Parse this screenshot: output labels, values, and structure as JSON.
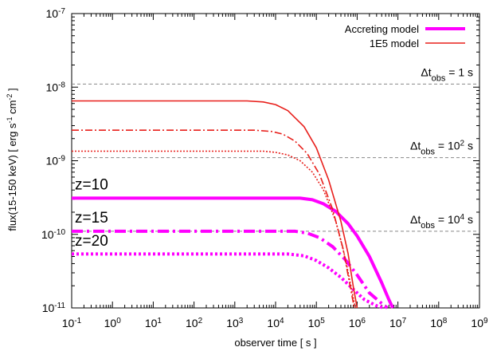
{
  "chart_data": {
    "type": "line",
    "xlabel": "observer time [ s ]",
    "ylabel": "flux(15-150 keV) [ erg s-1 cm-2 ]",
    "ylabel_parts": {
      "prefix": "flux(15-150 keV) [ erg s",
      "exp1": "-1",
      "middle": " cm",
      "exp2": "-2",
      "suffix": " ]"
    },
    "x_scale": "log",
    "y_scale": "log",
    "xlim": [
      0.1,
      1000000000
    ],
    "ylim": [
      1e-11,
      1e-07
    ],
    "grid": false,
    "legend_position": "top-right",
    "x_ticks": [
      {
        "value": 0.1,
        "base": "10",
        "exp": "-1"
      },
      {
        "value": 1,
        "base": "10",
        "exp": "0"
      },
      {
        "value": 10,
        "base": "10",
        "exp": "1"
      },
      {
        "value": 100,
        "base": "10",
        "exp": "2"
      },
      {
        "value": 1000,
        "base": "10",
        "exp": "3"
      },
      {
        "value": 10000,
        "base": "10",
        "exp": "4"
      },
      {
        "value": 100000,
        "base": "10",
        "exp": "5"
      },
      {
        "value": 1000000,
        "base": "10",
        "exp": "6"
      },
      {
        "value": 10000000,
        "base": "10",
        "exp": "7"
      },
      {
        "value": 100000000,
        "base": "10",
        "exp": "8"
      },
      {
        "value": 1000000000,
        "base": "10",
        "exp": "9"
      }
    ],
    "y_ticks": [
      {
        "value": 1e-11,
        "base": "10",
        "exp": "-11"
      },
      {
        "value": 1e-10,
        "base": "10",
        "exp": "-10"
      },
      {
        "value": 1e-09,
        "base": "10",
        "exp": "-9"
      },
      {
        "value": 1e-08,
        "base": "10",
        "exp": "-8"
      },
      {
        "value": 1e-07,
        "base": "10",
        "exp": "-7"
      }
    ],
    "legend": [
      {
        "name": "Accreting model",
        "color": "#ff00ff",
        "width": "thick"
      },
      {
        "name": "1E5 model",
        "color": "#e8201c",
        "width": "thin"
      }
    ],
    "series": [
      {
        "model": "Accreting model",
        "redshift": "z=10",
        "color": "#ff00ff",
        "dash": "solid",
        "width": "thick",
        "x": [
          0.1,
          40000,
          80000,
          150000,
          300000,
          600000,
          1000000,
          2000000,
          4000000,
          6000000,
          7500000
        ],
        "y": [
          3.1e-10,
          3.1e-10,
          2.95e-10,
          2.6e-10,
          2.05e-10,
          1.4e-10,
          9.5e-11,
          5e-11,
          2.2e-11,
          1.3e-11,
          1e-11
        ]
      },
      {
        "model": "Accreting model",
        "redshift": "z=15",
        "color": "#ff00ff",
        "dash": "dash-dot",
        "width": "thick",
        "x": [
          0.1,
          30000,
          60000,
          120000,
          250000,
          500000,
          1000000,
          2000000,
          4000000,
          5500000
        ],
        "y": [
          1.1e-10,
          1.1e-10,
          1.04e-10,
          9e-11,
          6.8e-11,
          4.6e-11,
          2.8e-11,
          1.6e-11,
          1.15e-11,
          1e-11
        ]
      },
      {
        "model": "Accreting model",
        "redshift": "z=20",
        "color": "#ff00ff",
        "dash": "dotted",
        "width": "thick",
        "x": [
          0.1,
          20000,
          50000,
          100000,
          200000,
          400000,
          800000,
          1500000,
          3000000,
          4500000
        ],
        "y": [
          5.4e-11,
          5.4e-11,
          5.1e-11,
          4.4e-11,
          3.5e-11,
          2.6e-11,
          1.8e-11,
          1.3e-11,
          1.07e-11,
          1e-11
        ]
      },
      {
        "model": "1E5 model",
        "redshift": "z=10",
        "color": "#e8201c",
        "dash": "solid",
        "width": "thin",
        "x": [
          0.1,
          2000,
          5000,
          10000,
          20000,
          50000,
          100000,
          200000,
          400000,
          600000,
          800000,
          1000000
        ],
        "y": [
          6.5e-09,
          6.5e-09,
          6.3e-09,
          5.8e-09,
          4.8e-09,
          2.9e-09,
          1.5e-09,
          5.5e-10,
          1.5e-10,
          5.5e-11,
          2e-11,
          1e-11
        ]
      },
      {
        "model": "1E5 model",
        "redshift": "z=15",
        "color": "#e8201c",
        "dash": "dash-dot",
        "width": "thin",
        "x": [
          0.1,
          3000,
          8000,
          15000,
          30000,
          60000,
          120000,
          250000,
          450000,
          650000,
          850000
        ],
        "y": [
          2.6e-09,
          2.6e-09,
          2.5e-09,
          2.3e-09,
          1.85e-09,
          1.25e-09,
          6.5e-10,
          2.2e-10,
          6.5e-11,
          2.2e-11,
          1e-11
        ]
      },
      {
        "model": "1E5 model",
        "redshift": "z=20",
        "color": "#e8201c",
        "dash": "dotted",
        "width": "thin",
        "x": [
          0.1,
          5000,
          10000,
          20000,
          40000,
          80000,
          150000,
          300000,
          500000,
          700000,
          900000
        ],
        "y": [
          1.35e-09,
          1.35e-09,
          1.3e-09,
          1.2e-09,
          1e-09,
          7e-10,
          4e-10,
          1.5e-10,
          5e-11,
          2e-11,
          1e-11
        ]
      }
    ],
    "hlines": [
      {
        "y": 1.1e-08,
        "label_prefix": "Δt",
        "label_sub": "obs",
        "label_suffix": " = 1 s",
        "label_exp": ""
      },
      {
        "y": 1.1e-09,
        "label_prefix": "Δt",
        "label_sub": "obs",
        "label_suffix": " = 10",
        "label_exp": "2",
        "label_unit": " s"
      },
      {
        "y": 1.1e-10,
        "label_prefix": "Δt",
        "label_sub": "obs",
        "label_suffix": " = 10",
        "label_exp": "4",
        "label_unit": " s"
      }
    ],
    "curve_labels": [
      {
        "text": "z=10",
        "x": 0.12,
        "y": 3.5e-10
      },
      {
        "text": "z=15",
        "x": 0.12,
        "y": 1.25e-10
      },
      {
        "text": "z=20",
        "x": 0.12,
        "y": 6e-11
      }
    ]
  }
}
